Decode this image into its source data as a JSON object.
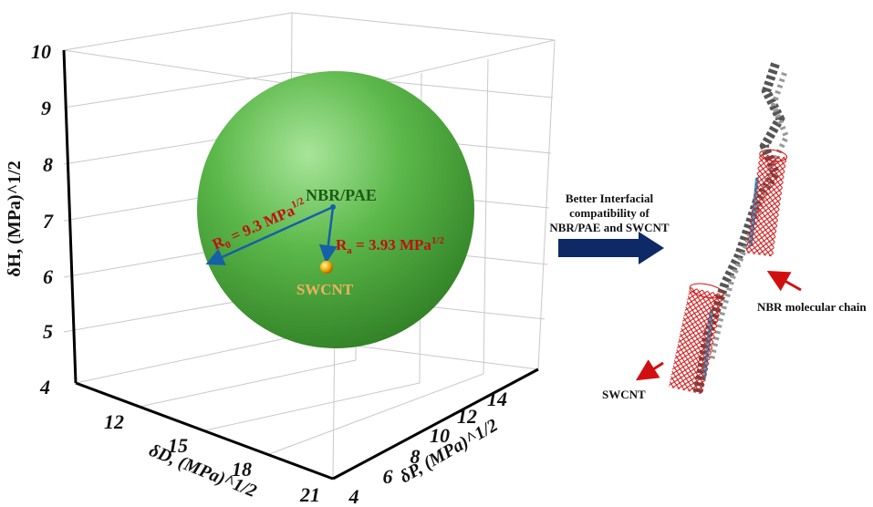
{
  "plot": {
    "z_axis": {
      "label": "δH, (MPa)^1/2",
      "ticks": [
        "4",
        "5",
        "6",
        "7",
        "8",
        "9",
        "10"
      ]
    },
    "x_axis": {
      "label": "δD, (MPa)^1/2",
      "ticks": [
        "12",
        "15",
        "18",
        "21"
      ]
    },
    "y_axis": {
      "label": "δP, (MPa)^1/2",
      "ticks": [
        "4",
        "6",
        "8",
        "10",
        "12",
        "14"
      ]
    },
    "center_label": "NBR/PAE",
    "point_label": "SWCNT",
    "r0": {
      "symbol": "R",
      "sub": "0",
      "text": " = 9.3 MPa",
      "sup": "1/2"
    },
    "ra": {
      "symbol": "R",
      "sub": "a",
      "text": " = 3.93 MPa",
      "sup": "1/2"
    }
  },
  "illustration": {
    "arrow_text": [
      "Better Interfacial",
      "compatibility of",
      "NBR/PAE and SWCNT"
    ],
    "chain_label": "NBR molecular chain",
    "tube_label": "SWCNT"
  }
}
